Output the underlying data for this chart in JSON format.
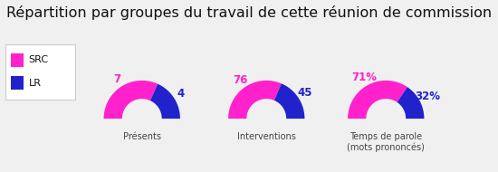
{
  "title": "Répartition par groupes du travail de cette réunion de commission",
  "title_fontsize": 11.5,
  "background_color": "#f0f0f0",
  "src_color": "#ff22cc",
  "lr_color": "#2222cc",
  "white_color": "#ffffff",
  "legend_labels": [
    "SRC",
    "LR"
  ],
  "charts": [
    {
      "label": "Présents",
      "src_value": 7,
      "lr_value": 4,
      "src_label": "7",
      "lr_label": "4"
    },
    {
      "label": "Interventions",
      "src_value": 76,
      "lr_value": 45,
      "src_label": "76",
      "lr_label": "45"
    },
    {
      "label": "Temps de parole\n(mots prononcés)",
      "src_value": 71,
      "lr_value": 32,
      "src_label": "71%",
      "lr_label": "32%"
    }
  ]
}
